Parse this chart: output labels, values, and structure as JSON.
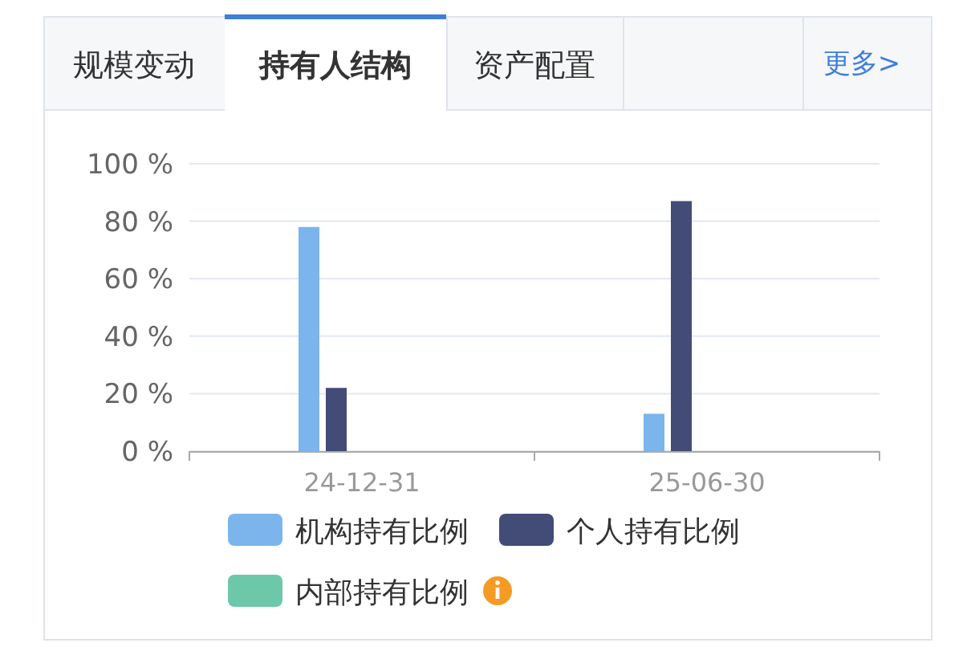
{
  "chart_data": {
    "type": "bar",
    "categories": [
      "24-12-31",
      "25-06-30"
    ],
    "series": [
      {
        "name": "机构持有比例",
        "color": "#7cb5ec",
        "values": [
          78,
          13
        ]
      },
      {
        "name": "个人持有比例",
        "color": "#434b77",
        "values": [
          22,
          87
        ]
      },
      {
        "name": "内部持有比例",
        "color": "#6cc8a8",
        "values": [
          0,
          0
        ]
      }
    ],
    "ylim": [
      0,
      100
    ],
    "yticks": [
      {
        "value": 0,
        "label": "0 %"
      },
      {
        "value": 20,
        "label": "20 %"
      },
      {
        "value": 40,
        "label": "40 %"
      },
      {
        "value": 60,
        "label": "60 %"
      },
      {
        "value": 80,
        "label": "80 %"
      },
      {
        "value": 100,
        "label": "100 %"
      }
    ],
    "grid": "y",
    "legend": "bottom",
    "annotations": [
      "规模变动",
      "持有人结构",
      "资产配置",
      "更多>"
    ]
  }
}
